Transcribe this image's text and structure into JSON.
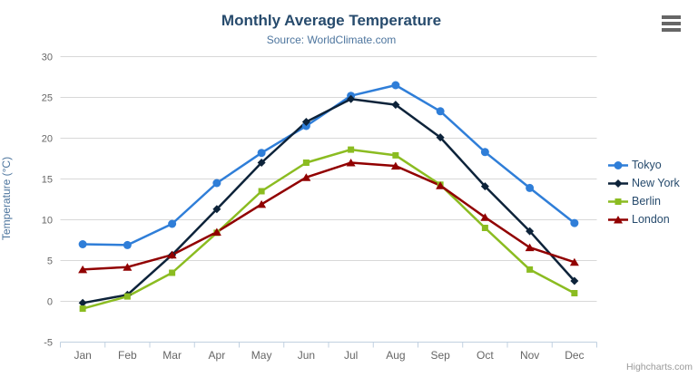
{
  "chart": {
    "title": "Monthly Average Temperature",
    "subtitle": "Source: WorldClimate.com",
    "y_axis_title": "Temperature (°C)",
    "credits": "Highcharts.com",
    "context_menu_icon": "hamburger-icon"
  },
  "colors": {
    "title": "#274b6d",
    "subtitle": "#4d759e",
    "axis_labels": "#666666",
    "gridline": "#d8d8d8",
    "axis_line": "#c0d0e0",
    "credits": "#999999",
    "menu_icon": "#666666"
  },
  "chart_data": {
    "type": "line",
    "title": "Monthly Average Temperature",
    "subtitle": "Source: WorldClimate.com",
    "xlabel": "",
    "ylabel": "Temperature (°C)",
    "ylim": [
      -5,
      30
    ],
    "ytick_step": 5,
    "grid": true,
    "legend_position": "right",
    "categories": [
      "Jan",
      "Feb",
      "Mar",
      "Apr",
      "May",
      "Jun",
      "Jul",
      "Aug",
      "Sep",
      "Oct",
      "Nov",
      "Dec"
    ],
    "series": [
      {
        "name": "Tokyo",
        "color": "#2f7ed8",
        "marker": "circle",
        "values": [
          7.0,
          6.9,
          9.5,
          14.5,
          18.2,
          21.5,
          25.2,
          26.5,
          23.3,
          18.3,
          13.9,
          9.6
        ]
      },
      {
        "name": "New York",
        "color": "#0d233a",
        "marker": "diamond",
        "values": [
          -0.2,
          0.8,
          5.7,
          11.3,
          17.0,
          22.0,
          24.8,
          24.1,
          20.1,
          14.1,
          8.6,
          2.5
        ]
      },
      {
        "name": "Berlin",
        "color": "#8bbc21",
        "marker": "square",
        "values": [
          -0.9,
          0.6,
          3.5,
          8.4,
          13.5,
          17.0,
          18.6,
          17.9,
          14.3,
          9.0,
          3.9,
          1.0
        ]
      },
      {
        "name": "London",
        "color": "#910000",
        "marker": "triangle",
        "values": [
          3.9,
          4.2,
          5.7,
          8.5,
          11.9,
          15.2,
          17.0,
          16.6,
          14.2,
          10.3,
          6.6,
          4.8
        ]
      }
    ]
  }
}
